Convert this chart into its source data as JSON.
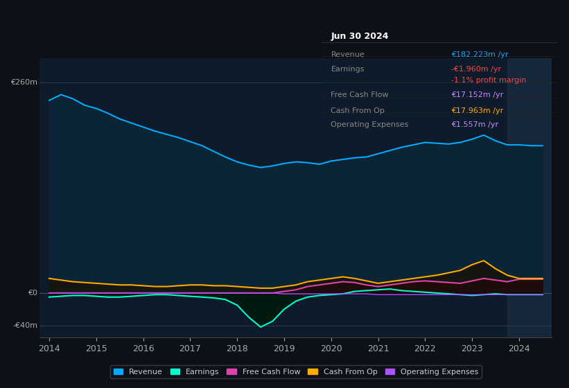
{
  "background_color": "#0d1117",
  "plot_bg_color": "#0d1b2a",
  "years": [
    2014.0,
    2014.25,
    2014.5,
    2014.75,
    2015.0,
    2015.25,
    2015.5,
    2015.75,
    2016.0,
    2016.25,
    2016.5,
    2016.75,
    2017.0,
    2017.25,
    2017.5,
    2017.75,
    2018.0,
    2018.25,
    2018.5,
    2018.75,
    2019.0,
    2019.25,
    2019.5,
    2019.75,
    2020.0,
    2020.25,
    2020.5,
    2020.75,
    2021.0,
    2021.25,
    2021.5,
    2021.75,
    2022.0,
    2022.25,
    2022.5,
    2022.75,
    2023.0,
    2023.25,
    2023.5,
    2023.75,
    2024.0,
    2024.25,
    2024.5
  ],
  "revenue": [
    238,
    245,
    240,
    232,
    228,
    222,
    215,
    210,
    205,
    200,
    196,
    192,
    187,
    182,
    175,
    168,
    162,
    158,
    155,
    157,
    160,
    162,
    161,
    159,
    163,
    165,
    167,
    168,
    172,
    176,
    180,
    183,
    186,
    185,
    184,
    186,
    190,
    195,
    188,
    183,
    183,
    182,
    182
  ],
  "earnings": [
    -5,
    -4,
    -3,
    -3,
    -4,
    -5,
    -5,
    -4,
    -3,
    -2,
    -2,
    -3,
    -4,
    -5,
    -6,
    -8,
    -15,
    -30,
    -42,
    -35,
    -20,
    -10,
    -5,
    -3,
    -2,
    -1,
    2,
    3,
    4,
    5,
    3,
    2,
    1,
    0,
    -1,
    -2,
    -3,
    -2,
    -1,
    -2,
    -2,
    -2,
    -2
  ],
  "free_cash_flow": [
    0,
    0,
    0,
    0,
    0,
    0,
    0,
    0,
    0,
    0,
    0,
    0,
    0,
    0,
    0,
    0,
    0,
    0,
    0,
    0,
    2,
    4,
    8,
    10,
    12,
    14,
    13,
    10,
    8,
    10,
    12,
    14,
    15,
    14,
    13,
    12,
    15,
    18,
    16,
    14,
    17,
    17,
    17
  ],
  "cash_from_op": [
    18,
    16,
    14,
    13,
    12,
    11,
    10,
    10,
    9,
    8,
    8,
    9,
    10,
    10,
    9,
    9,
    8,
    7,
    6,
    6,
    8,
    10,
    14,
    16,
    18,
    20,
    18,
    15,
    12,
    14,
    16,
    18,
    20,
    22,
    25,
    28,
    35,
    40,
    30,
    22,
    18,
    18,
    18
  ],
  "operating_expenses": [
    0,
    0,
    0,
    0,
    0,
    0,
    0,
    0,
    0,
    0,
    0,
    0,
    0,
    0,
    0,
    0,
    0,
    0,
    0,
    0,
    -1,
    -1,
    -1,
    -1,
    -1,
    -1,
    -1,
    -1,
    -2,
    -2,
    -2,
    -2,
    -2,
    -2,
    -2,
    -2,
    -2,
    -2,
    -2,
    -2,
    -2,
    -2,
    -2
  ],
  "tooltip_title": "Jun 30 2024",
  "tooltip_rows": [
    {
      "label": "Revenue",
      "value": "€182.223m /yr",
      "value_color": "#00aaff",
      "has_sep": true
    },
    {
      "label": "Earnings",
      "value": "-€1.960m /yr",
      "value_color": "#ff4444",
      "has_sep": false
    },
    {
      "label": "",
      "value": "-1.1% profit margin",
      "value_color": "#ff4444",
      "has_sep": true
    },
    {
      "label": "Free Cash Flow",
      "value": "€17.152m /yr",
      "value_color": "#cc88ff",
      "has_sep": true
    },
    {
      "label": "Cash From Op",
      "value": "€17.963m /yr",
      "value_color": "#ffaa00",
      "has_sep": true
    },
    {
      "label": "Operating Expenses",
      "value": "€1.557m /yr",
      "value_color": "#cc88ff",
      "has_sep": false
    }
  ],
  "revenue_color": "#00aaff",
  "earnings_color": "#00ffcc",
  "free_cash_flow_color": "#dd44aa",
  "cash_from_op_color": "#ffaa00",
  "operating_expenses_color": "#aa55ff",
  "legend_items": [
    {
      "label": "Revenue",
      "color": "#00aaff"
    },
    {
      "label": "Earnings",
      "color": "#00ffcc"
    },
    {
      "label": "Free Cash Flow",
      "color": "#dd44aa"
    },
    {
      "label": "Cash From Op",
      "color": "#ffaa00"
    },
    {
      "label": "Operating Expenses",
      "color": "#aa55ff"
    }
  ],
  "xlim": [
    2013.8,
    2024.7
  ],
  "ylim": [
    -55,
    290
  ],
  "highlight_start": 2023.75,
  "highlight_end": 2024.7,
  "xticks": [
    2014,
    2015,
    2016,
    2017,
    2018,
    2019,
    2020,
    2021,
    2022,
    2023,
    2024
  ],
  "yticks_labels": [
    "€260m",
    "€0",
    "-€40m"
  ],
  "yticks_values": [
    260,
    0,
    -40
  ]
}
